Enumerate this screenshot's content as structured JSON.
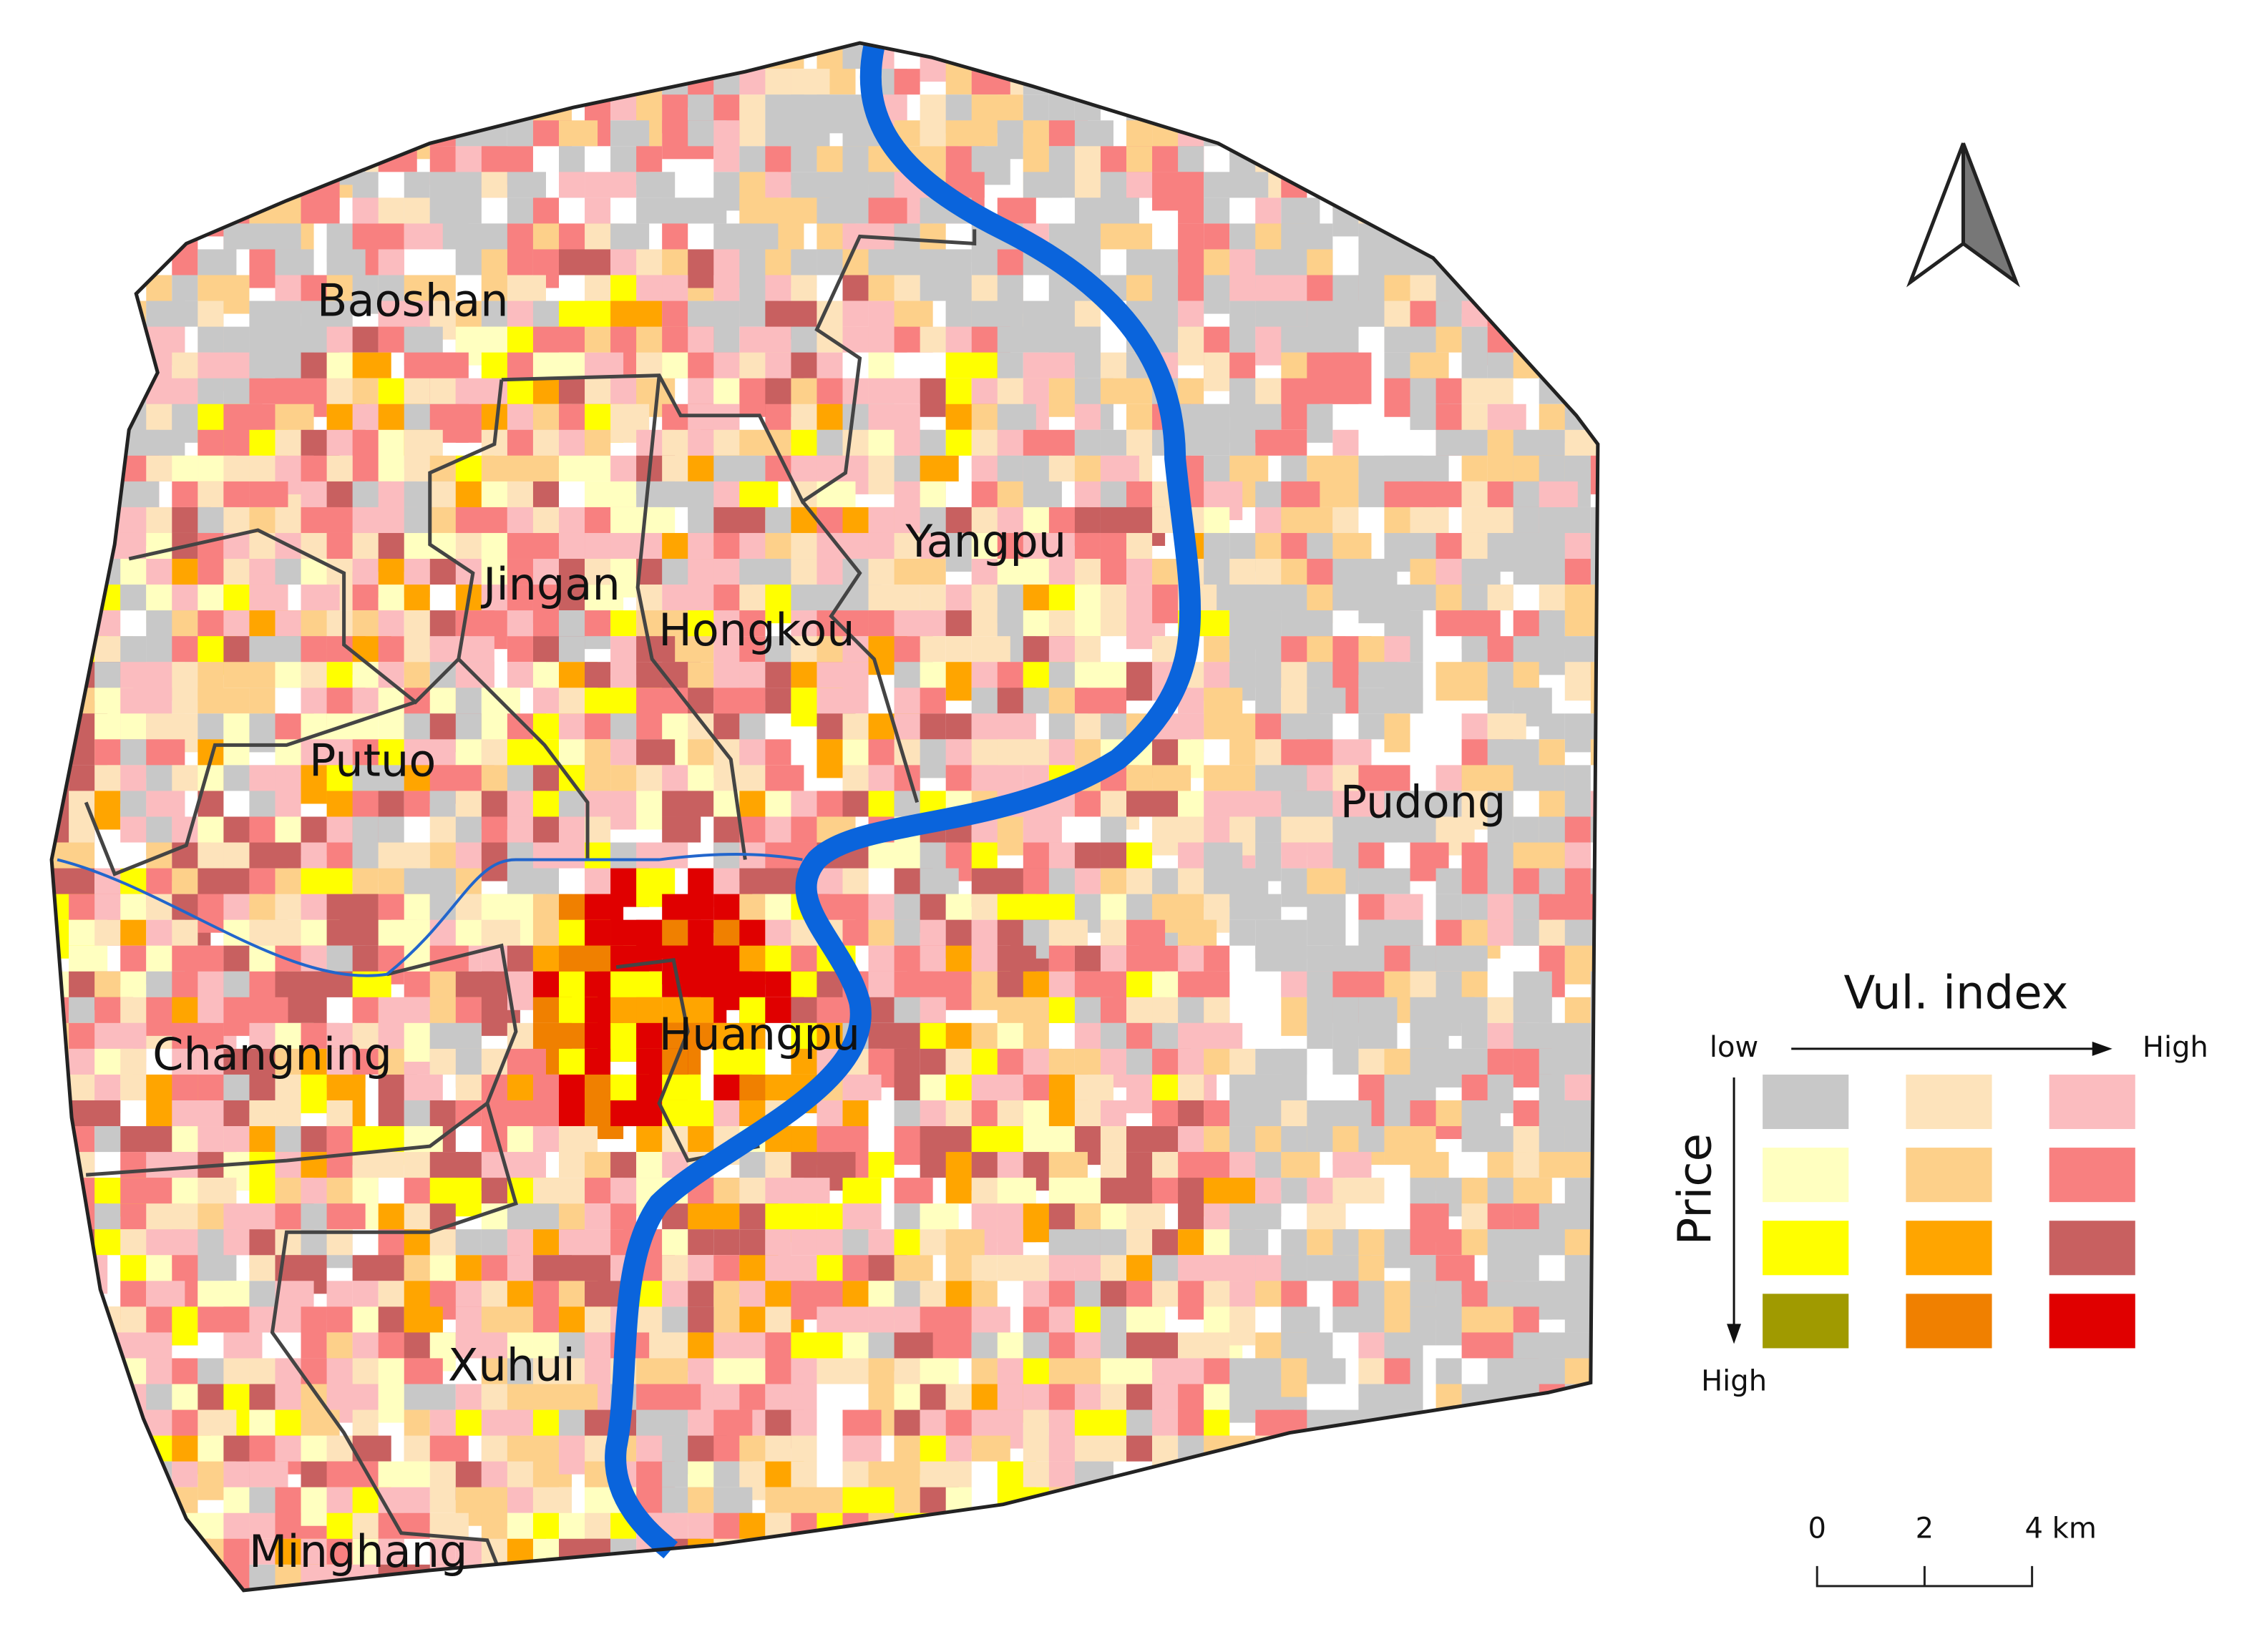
{
  "map": {
    "districts": [
      {
        "label": "Baoshan"
      },
      {
        "label": "Jingan"
      },
      {
        "label": "Hongkou"
      },
      {
        "label": "Yangpu"
      },
      {
        "label": "Putuo"
      },
      {
        "label": "Pudong"
      },
      {
        "label": "Changning"
      },
      {
        "label": "Huangpu"
      },
      {
        "label": "Xuhui"
      },
      {
        "label": "Minghang"
      }
    ],
    "legend": {
      "title": "Vul. index",
      "x_low": "low",
      "x_high": "High",
      "y_label": "Price",
      "y_high": "High",
      "colors": [
        [
          "#c8c8c8",
          "#fde3bb",
          "#fbbcbf"
        ],
        [
          "#ffffc0",
          "#fdd08a",
          "#f88080"
        ],
        [
          "#ffff00",
          "#ffa500",
          "#c86060"
        ],
        [
          "#a09a00",
          "#f08000",
          "#e00000"
        ]
      ]
    },
    "scale_bar": {
      "ticks": [
        "0",
        "2",
        "4 km"
      ]
    }
  }
}
